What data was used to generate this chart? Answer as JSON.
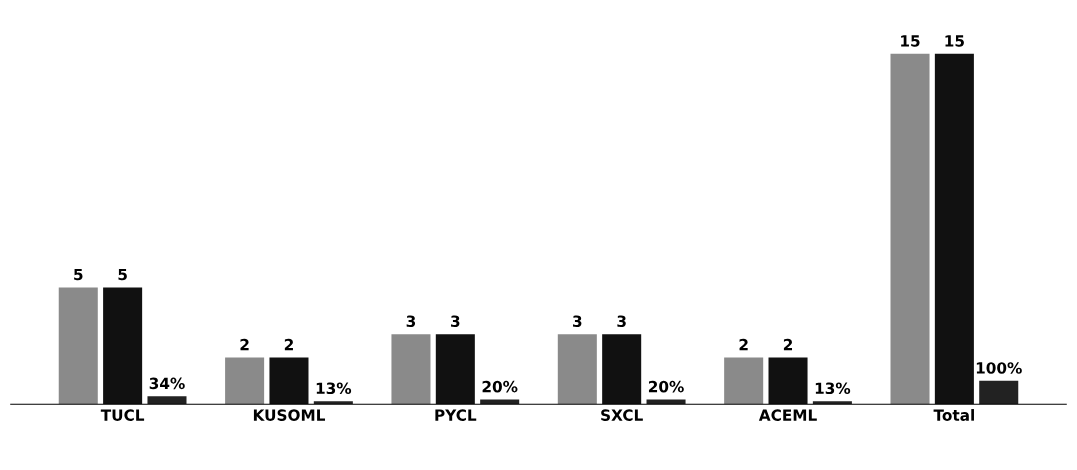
{
  "chart_data": {
    "type": "bar",
    "categories": [
      "TUCL",
      "KUSOML",
      "PYCL",
      "SXCL",
      "ACEML",
      "Total"
    ],
    "series": [
      {
        "color": "#8a8a8a",
        "values": [
          5,
          2,
          3,
          3,
          2,
          15
        ],
        "value_labels": [
          "5",
          "2",
          "3",
          "3",
          "2",
          "15"
        ]
      },
      {
        "color": "#111111",
        "values": [
          5,
          2,
          3,
          3,
          2,
          15
        ],
        "value_labels": [
          "5",
          "2",
          "3",
          "3",
          "2",
          "15"
        ]
      },
      {
        "color": "#222222",
        "values": [
          0.34,
          0.13,
          0.2,
          0.2,
          0.13,
          1
        ],
        "value_labels": [
          "34%",
          "13%",
          "20%",
          "20%",
          "13%",
          "100%"
        ]
      }
    ],
    "tick_labels": "x",
    "grid": false,
    "legend": false
  }
}
